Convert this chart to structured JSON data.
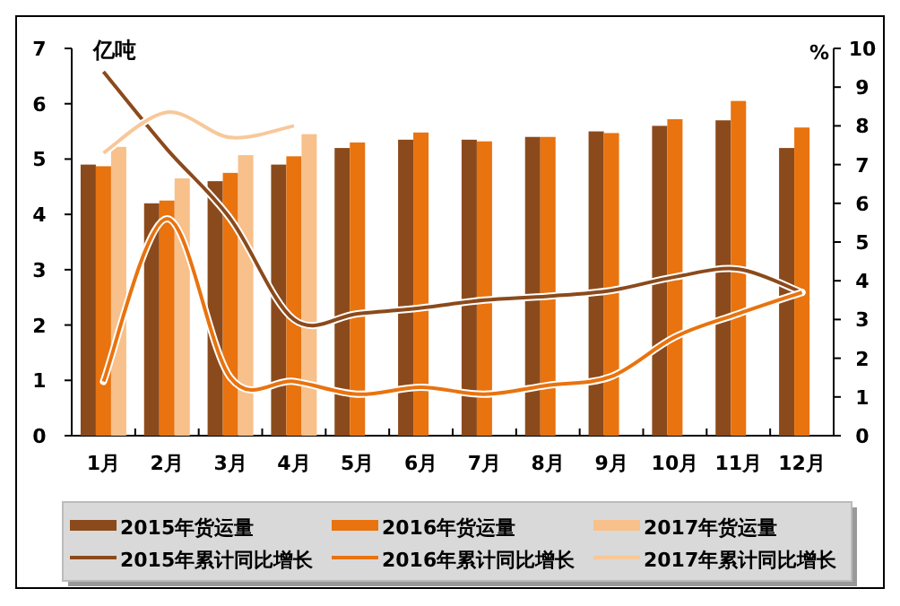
{
  "chart_data": {
    "type": "bar",
    "ylabel": "亿吨",
    "y2label": "%",
    "categories": [
      "1月",
      "2月",
      "3月",
      "4月",
      "5月",
      "6月",
      "7月",
      "8月",
      "9月",
      "10月",
      "11月",
      "12月"
    ],
    "ylim": [
      0,
      7
    ],
    "yticks": [
      0,
      1,
      2,
      3,
      4,
      5,
      6,
      7
    ],
    "y2lim": [
      0,
      10
    ],
    "y2ticks": [
      0,
      1,
      2,
      3,
      4,
      5,
      6,
      7,
      8,
      9,
      10
    ],
    "legend": "bottom",
    "series": [
      {
        "name": "2015年货运量",
        "color": "#8b4a1c",
        "values": [
          4.9,
          4.2,
          4.6,
          4.9,
          5.2,
          5.35,
          5.35,
          5.4,
          5.5,
          5.6,
          5.7,
          5.2
        ]
      },
      {
        "name": "2016年货运量",
        "color": "#e8730f",
        "values": [
          4.87,
          4.25,
          4.75,
          5.05,
          5.3,
          5.48,
          5.32,
          5.4,
          5.47,
          5.72,
          6.05,
          5.57
        ]
      },
      {
        "name": "2017年货运量",
        "color": "#f8c08a",
        "values": [
          5.22,
          4.65,
          5.07,
          5.45,
          null,
          null,
          null,
          null,
          null,
          null,
          null,
          null
        ]
      },
      {
        "name": "2015年累计同比增长",
        "type": "line",
        "axis": "y2",
        "color": "#8b4a1c",
        "values": [
          9.4,
          7.4,
          5.6,
          3.0,
          3.15,
          3.3,
          3.5,
          3.6,
          3.75,
          4.1,
          4.3,
          3.7
        ]
      },
      {
        "name": "2016年累计同比增长",
        "type": "line",
        "axis": "y2",
        "color": "#e8730f",
        "values": [
          1.4,
          5.6,
          1.5,
          1.4,
          1.07,
          1.25,
          1.07,
          1.3,
          1.53,
          2.55,
          3.15,
          3.7
        ]
      },
      {
        "name": "2017年累计同比增长",
        "type": "line",
        "axis": "y2",
        "color": "#f8c89a",
        "values": [
          7.3,
          8.35,
          7.7,
          8.0,
          null,
          null,
          null,
          null,
          null,
          null,
          null,
          null
        ]
      }
    ]
  }
}
